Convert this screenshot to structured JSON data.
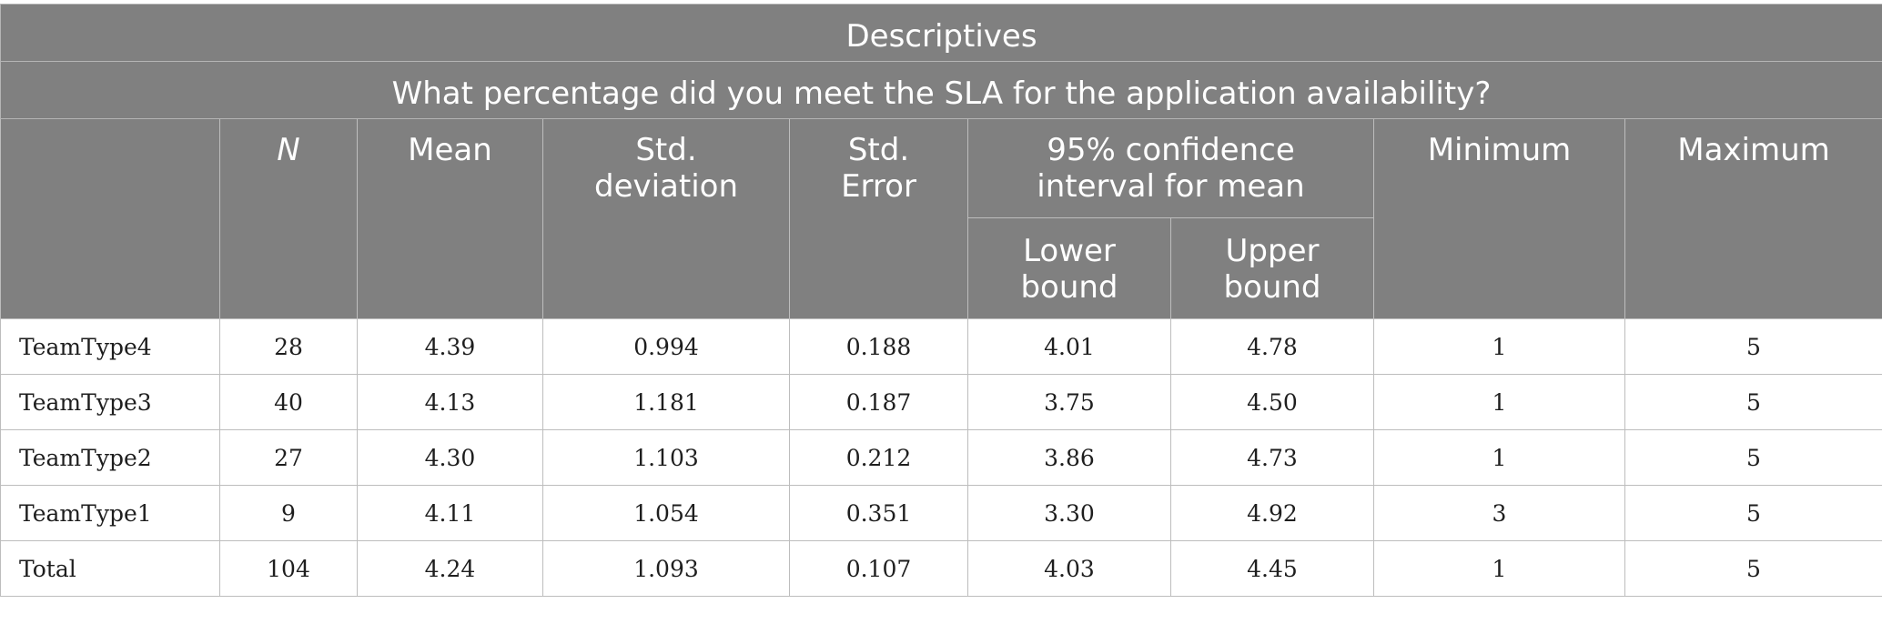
{
  "table": {
    "title": "Descriptives",
    "question": "What percentage did you meet the SLA for the application availability?",
    "headers": {
      "n": "N",
      "mean": "Mean",
      "std_deviation_1": "Std.",
      "std_deviation_2": "deviation",
      "std_error_1": "Std.",
      "std_error_2": "Error",
      "ci_1": "95% confidence",
      "ci_2": "interval for mean",
      "lower_1": "Lower",
      "lower_2": "bound",
      "upper_1": "Upper",
      "upper_2": "bound",
      "minimum": "Minimum",
      "maximum": "Maximum"
    },
    "rows": [
      {
        "label": "TeamType4",
        "n": "28",
        "mean": "4.39",
        "sd": "0.994",
        "se": "0.188",
        "lower": "4.01",
        "upper": "4.78",
        "min": "1",
        "max": "5"
      },
      {
        "label": "TeamType3",
        "n": "40",
        "mean": "4.13",
        "sd": "1.181",
        "se": "0.187",
        "lower": "3.75",
        "upper": "4.50",
        "min": "1",
        "max": "5"
      },
      {
        "label": "TeamType2",
        "n": "27",
        "mean": "4.30",
        "sd": "1.103",
        "se": "0.212",
        "lower": "3.86",
        "upper": "4.73",
        "min": "1",
        "max": "5"
      },
      {
        "label": "TeamType1",
        "n": "9",
        "mean": "4.11",
        "sd": "1.054",
        "se": "0.351",
        "lower": "3.30",
        "upper": "4.92",
        "min": "3",
        "max": "5"
      },
      {
        "label": "Total",
        "n": "104",
        "mean": "4.24",
        "sd": "1.093",
        "se": "0.107",
        "lower": "4.03",
        "upper": "4.45",
        "min": "1",
        "max": "5"
      }
    ]
  }
}
